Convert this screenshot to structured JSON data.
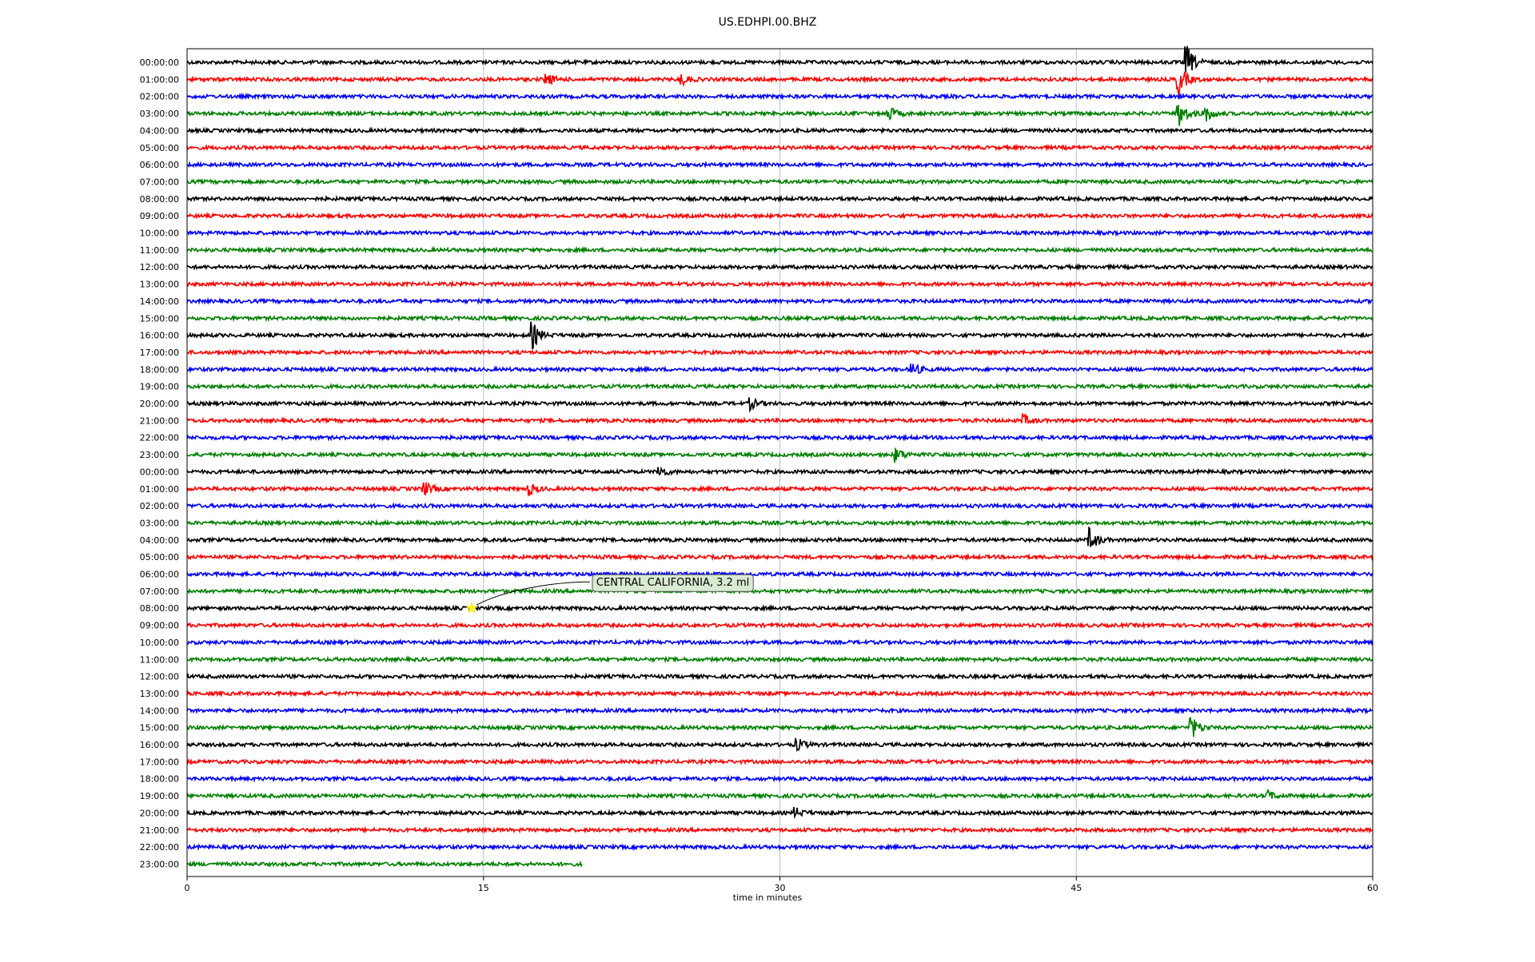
{
  "chart_data": {
    "type": "line",
    "title": "US.EDHPI.00.BHZ",
    "xlabel": "time in minutes",
    "ylabel": "",
    "xlim": [
      0,
      60
    ],
    "x_ticks": [
      0,
      15,
      30,
      45,
      60
    ],
    "x_grid": true,
    "trace_colors": [
      "#000000",
      "#ff0000",
      "#0000ff",
      "#008000"
    ],
    "row_labels": [
      "00:00:00",
      "01:00:00",
      "02:00:00",
      "03:00:00",
      "04:00:00",
      "05:00:00",
      "06:00:00",
      "07:00:00",
      "08:00:00",
      "09:00:00",
      "10:00:00",
      "11:00:00",
      "12:00:00",
      "13:00:00",
      "14:00:00",
      "15:00:00",
      "16:00:00",
      "17:00:00",
      "18:00:00",
      "19:00:00",
      "20:00:00",
      "21:00:00",
      "22:00:00",
      "23:00:00",
      "00:00:00",
      "01:00:00",
      "02:00:00",
      "03:00:00",
      "04:00:00",
      "05:00:00",
      "06:00:00",
      "07:00:00",
      "08:00:00",
      "09:00:00",
      "10:00:00",
      "11:00:00",
      "12:00:00",
      "13:00:00",
      "14:00:00",
      "15:00:00",
      "16:00:00",
      "17:00:00",
      "18:00:00",
      "19:00:00",
      "20:00:00",
      "21:00:00",
      "22:00:00",
      "23:00:00"
    ],
    "last_row_end_minute": 20,
    "events": [
      {
        "row": 0,
        "minute": 50.6,
        "amp": 1.4
      },
      {
        "row": 1,
        "minute": 50.2,
        "amp": 1.3
      },
      {
        "row": 1,
        "minute": 25,
        "amp": 0.5
      },
      {
        "row": 1,
        "minute": 18.2,
        "amp": 0.5
      },
      {
        "row": 3,
        "minute": 50.2,
        "amp": 1.2
      },
      {
        "row": 3,
        "minute": 51.5,
        "amp": 0.8
      },
      {
        "row": 3,
        "minute": 35.5,
        "amp": 0.6
      },
      {
        "row": 16,
        "minute": 17.5,
        "amp": 1.1
      },
      {
        "row": 18,
        "minute": 36.7,
        "amp": 0.6
      },
      {
        "row": 20,
        "minute": 28.5,
        "amp": 0.5
      },
      {
        "row": 21,
        "minute": 42.3,
        "amp": 0.5
      },
      {
        "row": 23,
        "minute": 35.9,
        "amp": 0.6
      },
      {
        "row": 24,
        "minute": 23.9,
        "amp": 0.5
      },
      {
        "row": 25,
        "minute": 12,
        "amp": 0.6
      },
      {
        "row": 25,
        "minute": 17.3,
        "amp": 0.5
      },
      {
        "row": 28,
        "minute": 45.7,
        "amp": 1.0
      },
      {
        "row": 39,
        "minute": 50.8,
        "amp": 1.1
      },
      {
        "row": 40,
        "minute": 30.9,
        "amp": 0.5
      },
      {
        "row": 43,
        "minute": 54.7,
        "amp": 0.4
      },
      {
        "row": 44,
        "minute": 30.8,
        "amp": 0.4
      }
    ],
    "annotations": [
      {
        "text": "CENTRAL CALIFORNIA, 3.2 ml",
        "row": 32,
        "minute": 14.4,
        "marker": "star",
        "marker_color": "#ffff00",
        "box_color": "#d9ead3"
      }
    ]
  }
}
